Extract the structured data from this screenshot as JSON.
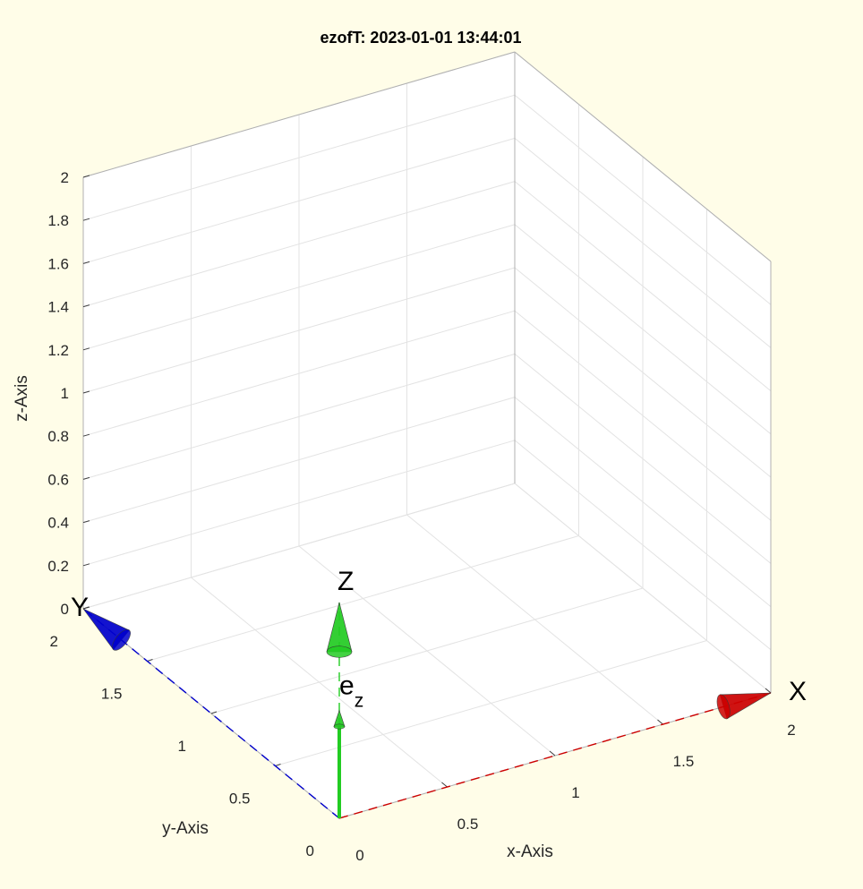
{
  "chart_data": {
    "type": "3d-line",
    "title": "ezofT: 2023-01-01 13:44:01",
    "xlabel": "x-Axis",
    "ylabel": "y-Axis",
    "zlabel": "z-Axis",
    "xlim": [
      0,
      2
    ],
    "ylim": [
      0,
      2
    ],
    "zlim": [
      0,
      2
    ],
    "grid": true,
    "x_ticks": [
      "0",
      "0.5",
      "1",
      "1.5",
      "2"
    ],
    "y_ticks": [
      "0",
      "0.5",
      "1",
      "1.5",
      "2"
    ],
    "z_ticks": [
      "0",
      "0.2",
      "0.4",
      "0.6",
      "0.8",
      "1",
      "1.2",
      "1.4",
      "1.6",
      "1.8",
      "2"
    ],
    "vectors": [
      {
        "label": "X",
        "from": [
          0,
          0,
          0
        ],
        "to": [
          2,
          0,
          0
        ],
        "color": "#cc0000",
        "style": "dashed"
      },
      {
        "label": "Y",
        "from": [
          0,
          0,
          0
        ],
        "to": [
          0,
          2,
          0
        ],
        "color": "#0000cc",
        "style": "dashed"
      },
      {
        "label": "Z",
        "from": [
          0,
          0,
          0
        ],
        "to": [
          0,
          0,
          1
        ],
        "color": "#22cc22",
        "style": "dashed"
      },
      {
        "label": "e",
        "label_sub": "z",
        "from": [
          0,
          0,
          0
        ],
        "to": [
          0,
          0,
          0.5
        ],
        "color": "#22cc22",
        "style": "solid"
      }
    ]
  }
}
